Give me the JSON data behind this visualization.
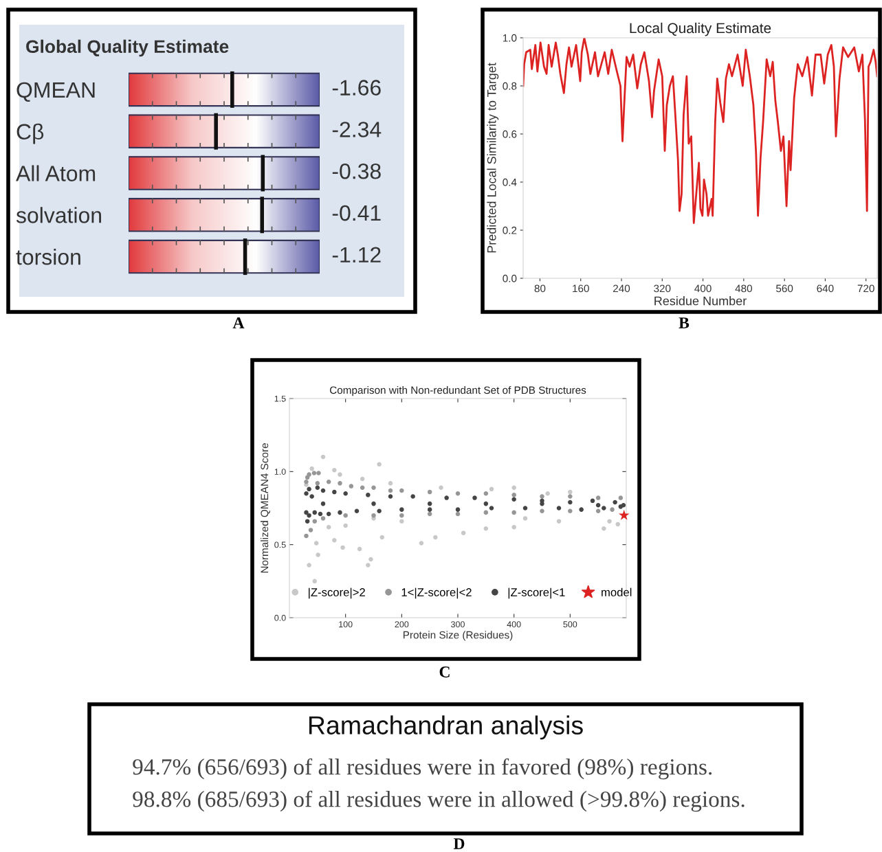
{
  "chart_data": [
    {
      "type": "other",
      "title": "Global Quality Estimate",
      "categories": [
        "QMEAN",
        "Cβ",
        "All Atom",
        "solvation",
        "torsion"
      ],
      "values": [
        -1.66,
        -2.34,
        -0.38,
        -0.41,
        -1.12
      ],
      "data_labels": true,
      "annotations": [
        "A"
      ]
    },
    {
      "type": "line",
      "title": "Local Quality Estimate",
      "xlabel": "Residue Number",
      "ylabel": "Predicted Local Similarity to Target",
      "annotations": [
        "B"
      ],
      "xlim": [
        47,
        742
      ],
      "xticks": [
        80,
        160,
        240,
        320,
        400,
        480,
        560,
        640,
        720
      ],
      "ylim": [
        0,
        1
      ],
      "yticks": [
        {
          "value": 0,
          "label": "0.0"
        },
        {
          "value": 0.2,
          "label": "0.2"
        },
        {
          "value": 0.4,
          "label": "0.4"
        },
        {
          "value": 0.6,
          "label": "0.6"
        },
        {
          "value": 0.8,
          "label": "0.8"
        },
        {
          "value": 1,
          "label": "1.0"
        }
      ],
      "grid": false,
      "series": [
        {
          "color": "#dd2222",
          "x": [
            47,
            49,
            53,
            61,
            64,
            71,
            75,
            81,
            88,
            93,
            97,
            103,
            111,
            115,
            120,
            127,
            132,
            137,
            142,
            151,
            159,
            162,
            167,
            174,
            179,
            188,
            194,
            207,
            214,
            221,
            231,
            238,
            242,
            246,
            250,
            256,
            263,
            271,
            278,
            285,
            294,
            300,
            304,
            313,
            320,
            325,
            329,
            335,
            341,
            346,
            351,
            354,
            358,
            362,
            368,
            372,
            377,
            382,
            386,
            392,
            395,
            399,
            402,
            407,
            410,
            417,
            419,
            424,
            428,
            434,
            440,
            445,
            451,
            457,
            468,
            478,
            484,
            492,
            499,
            504,
            508,
            513,
            518,
            525,
            532,
            537,
            542,
            547,
            553,
            558,
            564,
            569,
            572,
            579,
            586,
            595,
            605,
            614,
            621,
            631,
            638,
            645,
            652,
            657,
            661,
            668,
            675,
            685,
            697,
            706,
            713,
            718,
            722,
            725,
            729,
            735,
            739,
            742
          ],
          "values": [
            0.8,
            0.89,
            0.94,
            0.95,
            0.87,
            0.97,
            0.86,
            0.98,
            0.88,
            0.85,
            0.97,
            0.88,
            0.98,
            0.93,
            0.85,
            0.77,
            0.89,
            0.96,
            0.88,
            0.97,
            0.82,
            0.94,
            1.0,
            0.93,
            0.85,
            0.94,
            0.84,
            0.94,
            0.85,
            0.95,
            0.86,
            0.8,
            0.57,
            0.75,
            0.92,
            0.88,
            0.93,
            0.79,
            0.89,
            0.94,
            0.82,
            0.67,
            0.78,
            0.91,
            0.84,
            0.53,
            0.72,
            0.8,
            0.84,
            0.67,
            0.49,
            0.28,
            0.35,
            0.68,
            0.84,
            0.56,
            0.59,
            0.23,
            0.33,
            0.48,
            0.29,
            0.26,
            0.41,
            0.35,
            0.26,
            0.33,
            0.26,
            0.65,
            0.83,
            0.73,
            0.65,
            0.83,
            0.89,
            0.84,
            0.93,
            0.8,
            0.95,
            0.84,
            0.72,
            0.53,
            0.26,
            0.5,
            0.65,
            0.91,
            0.84,
            0.9,
            0.74,
            0.65,
            0.53,
            0.59,
            0.3,
            0.57,
            0.45,
            0.75,
            0.89,
            0.84,
            0.92,
            0.76,
            0.93,
            0.93,
            0.81,
            0.93,
            0.97,
            0.88,
            0.59,
            0.83,
            0.96,
            0.92,
            0.96,
            0.86,
            0.93,
            0.66,
            0.28,
            0.88,
            0.9,
            0.95,
            0.9,
            0.84
          ]
        }
      ]
    },
    {
      "type": "scatter",
      "title": "Comparison with Non-redundant Set of PDB Structures",
      "xlabel": "Protein Size (Residues)",
      "ylabel": "Normalized QMEAN4 Score",
      "annotations": [
        "C"
      ],
      "xlim": [
        0,
        600
      ],
      "xticks": [
        100,
        200,
        300,
        400,
        500
      ],
      "ylim": [
        0,
        1.5
      ],
      "yticks": [
        {
          "value": 0,
          "label": "0.0"
        },
        {
          "value": 0.5,
          "label": "0.5"
        },
        {
          "value": 1,
          "label": "1.0"
        },
        {
          "value": 1.5,
          "label": "1.5"
        }
      ],
      "grid": false,
      "legend": "bottom",
      "marker": "circle",
      "series": [
        {
          "name": "|Z-score|>2",
          "color": "#c8c8c8",
          "x": [
            30,
            60,
            40,
            80,
            160,
            90,
            130,
            180,
            35,
            45,
            48,
            51,
            80,
            95,
            125,
            140,
            145,
            165,
            235,
            260,
            310,
            350,
            400,
            420,
            480,
            560,
            585,
            570,
            400,
            270,
            360,
            460,
            500,
            100,
            70,
            200,
            150
          ],
          "values": [
            0.91,
            1.1,
            1.02,
            1.01,
            1.05,
            0.98,
            0.95,
            0.92,
            0.36,
            0.25,
            0.51,
            0.43,
            0.53,
            0.48,
            0.47,
            0.36,
            0.4,
            0.55,
            0.51,
            0.55,
            0.58,
            0.61,
            0.62,
            0.68,
            0.66,
            0.61,
            0.64,
            0.66,
            0.89,
            0.89,
            0.88,
            0.85,
            0.86,
            0.63,
            0.62,
            0.66,
            0.68
          ]
        },
        {
          "name": "1<|Z-score|<2",
          "color": "#969696",
          "x": [
            30,
            32,
            35,
            30,
            38,
            45,
            50,
            70,
            90,
            110,
            130,
            150,
            180,
            200,
            250,
            300,
            350,
            400,
            450,
            500,
            550,
            590,
            60,
            100,
            150,
            200,
            250,
            300,
            350,
            400,
            450,
            500,
            550,
            575,
            44,
            52
          ],
          "values": [
            0.93,
            0.96,
            0.98,
            0.56,
            0.6,
            0.66,
            0.92,
            0.93,
            0.92,
            0.9,
            0.89,
            0.89,
            0.87,
            0.87,
            0.86,
            0.85,
            0.85,
            0.84,
            0.83,
            0.83,
            0.82,
            0.82,
            0.68,
            0.7,
            0.7,
            0.7,
            0.71,
            0.71,
            0.72,
            0.72,
            0.73,
            0.73,
            0.73,
            0.74,
            0.99,
            0.99
          ]
        },
        {
          "name": "|Z-score|<1",
          "color": "#454545",
          "x": [
            30,
            30,
            32,
            35,
            35,
            40,
            45,
            50,
            55,
            60,
            70,
            80,
            90,
            100,
            120,
            140,
            160,
            180,
            200,
            220,
            250,
            280,
            300,
            330,
            360,
            400,
            420,
            450,
            480,
            500,
            520,
            540,
            560,
            580,
            590,
            595,
            60,
            150,
            250,
            350,
            450,
            550
          ],
          "values": [
            0.85,
            0.72,
            0.66,
            0.88,
            0.7,
            0.83,
            0.72,
            0.89,
            0.71,
            0.87,
            0.71,
            0.86,
            0.72,
            0.85,
            0.73,
            0.84,
            0.73,
            0.83,
            0.74,
            0.83,
            0.74,
            0.82,
            0.74,
            0.82,
            0.75,
            0.81,
            0.75,
            0.8,
            0.75,
            0.79,
            0.74,
            0.8,
            0.75,
            0.79,
            0.76,
            0.77,
            0.78,
            0.78,
            0.78,
            0.78,
            0.78,
            0.77
          ]
        },
        {
          "name": "model",
          "color": "#dd2222",
          "marker": "star",
          "x": [
            596
          ],
          "values": [
            0.7
          ]
        }
      ]
    },
    {
      "type": "other",
      "title": "Ramachandran analysis",
      "annotations": [
        "94.7% (656/693) of all residues were in favored (98%) regions.",
        "98.8% (685/693) of all residues were in allowed (>99.8%) regions.",
        "D"
      ]
    }
  ]
}
